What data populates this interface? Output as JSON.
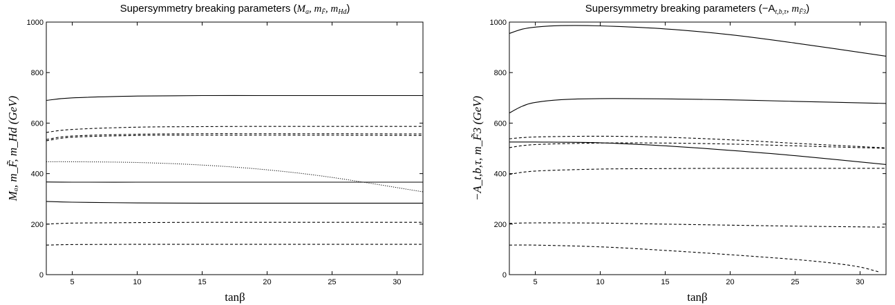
{
  "chart_data": [
    {
      "type": "line",
      "title_prefix": "Supersymmetry breaking parameters (",
      "title_math": "M",
      "title_math_sub": "a",
      "title_rest": ", m",
      "title_sub2": "F̃",
      "title_rest2": ", m",
      "title_sub3": "Hd",
      "title_suffix": ")",
      "xlabel": "tanβ",
      "ylabel": "Mₐ, m_F̃, m_Hd (GeV)",
      "xlim": [
        3,
        32
      ],
      "ylim": [
        0,
        1000
      ],
      "xticks": [
        5,
        10,
        15,
        20,
        25,
        30
      ],
      "yticks": [
        0,
        200,
        400,
        600,
        800,
        1000
      ],
      "series": [
        {
          "style": "solid",
          "x": [
            3,
            5,
            10,
            15,
            20,
            25,
            32
          ],
          "values": [
            690,
            700,
            707,
            709,
            709,
            709,
            709
          ]
        },
        {
          "style": "dashed",
          "x": [
            3,
            5,
            10,
            15,
            20,
            25,
            32
          ],
          "values": [
            563,
            575,
            584,
            586,
            587,
            587,
            587
          ]
        },
        {
          "style": "dashed",
          "x": [
            3,
            5,
            10,
            15,
            20,
            25,
            32
          ],
          "values": [
            535,
            549,
            556,
            558,
            558,
            558,
            557
          ]
        },
        {
          "style": "dashed",
          "x": [
            3,
            5,
            10,
            15,
            20,
            25,
            32
          ],
          "values": [
            530,
            544,
            551,
            552,
            552,
            552,
            551
          ]
        },
        {
          "style": "dotted",
          "x": [
            3,
            5,
            10,
            15,
            20,
            25,
            32
          ],
          "values": [
            447,
            447,
            444,
            434,
            415,
            385,
            328
          ]
        },
        {
          "style": "solid",
          "x": [
            3,
            5,
            10,
            15,
            20,
            25,
            32
          ],
          "values": [
            367,
            366,
            366,
            366,
            366,
            366,
            366
          ]
        },
        {
          "style": "solid",
          "x": [
            3,
            5,
            10,
            15,
            20,
            25,
            32
          ],
          "values": [
            290,
            287,
            284,
            283,
            283,
            283,
            283
          ]
        },
        {
          "style": "dashed",
          "x": [
            3,
            5,
            10,
            15,
            20,
            25,
            32
          ],
          "values": [
            200,
            204,
            206,
            207,
            207,
            207,
            207
          ]
        },
        {
          "style": "dashed",
          "x": [
            3,
            5,
            10,
            15,
            20,
            25,
            32
          ],
          "values": [
            117,
            119,
            120,
            120,
            120,
            120,
            120
          ]
        }
      ]
    },
    {
      "type": "line",
      "title_prefix": "Supersymmetry breaking parameters (−A",
      "title_sub1": "t,b,τ",
      "title_rest": ", m",
      "title_sub2": "F̃3",
      "title_suffix": ")",
      "xlabel": "tanβ",
      "ylabel": "−A_t,b,τ, m_F̃3 (GeV)",
      "xlim": [
        3,
        32
      ],
      "ylim": [
        0,
        1000
      ],
      "xticks": [
        5,
        10,
        15,
        20,
        25,
        30
      ],
      "yticks": [
        0,
        200,
        400,
        600,
        800,
        1000
      ],
      "series": [
        {
          "style": "solid",
          "x": [
            3,
            4,
            5,
            7,
            10,
            15,
            20,
            25,
            32
          ],
          "values": [
            955,
            972,
            980,
            986,
            985,
            973,
            950,
            917,
            865
          ]
        },
        {
          "style": "solid",
          "x": [
            3,
            4,
            5,
            7,
            10,
            15,
            20,
            25,
            32
          ],
          "values": [
            640,
            667,
            682,
            693,
            697,
            696,
            692,
            686,
            678
          ]
        },
        {
          "style": "dashed",
          "x": [
            3,
            5,
            10,
            15,
            20,
            25,
            32
          ],
          "values": [
            538,
            545,
            548,
            544,
            534,
            520,
            502
          ]
        },
        {
          "style": "solid",
          "x": [
            3,
            5,
            10,
            15,
            20,
            25,
            32
          ],
          "values": [
            525,
            525,
            522,
            510,
            492,
            471,
            436
          ]
        },
        {
          "style": "dashed",
          "x": [
            3,
            5,
            10,
            15,
            20,
            25,
            32
          ],
          "values": [
            503,
            515,
            521,
            521,
            517,
            510,
            500
          ]
        },
        {
          "style": "dashed",
          "x": [
            3,
            5,
            10,
            15,
            20,
            25,
            32
          ],
          "values": [
            397,
            410,
            418,
            420,
            421,
            421,
            421
          ]
        },
        {
          "style": "dashed",
          "x": [
            3,
            5,
            10,
            15,
            20,
            25,
            32
          ],
          "values": [
            203,
            205,
            204,
            200,
            196,
            192,
            188
          ]
        },
        {
          "style": "dashed",
          "x": [
            3,
            5,
            10,
            15,
            20,
            25,
            28,
            30,
            31.5
          ],
          "values": [
            117,
            117,
            110,
            96,
            79,
            60,
            45,
            30,
            10
          ]
        }
      ]
    }
  ]
}
